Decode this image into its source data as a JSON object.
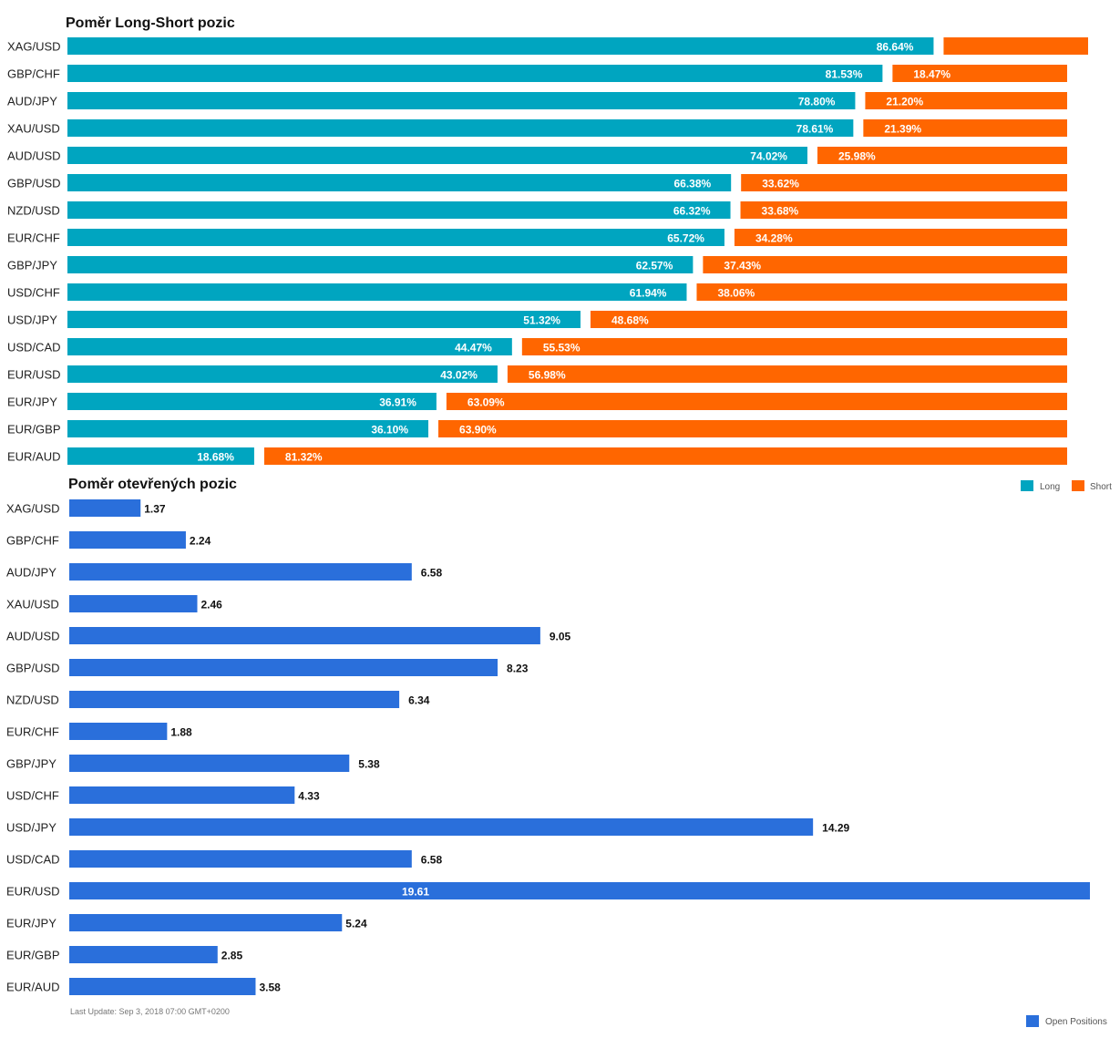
{
  "chart_data": [
    {
      "type": "bar",
      "orientation": "horizontal",
      "stacked": true,
      "title": "Poměr Long-Short pozic",
      "categories": [
        "XAG/USD",
        "GBP/CHF",
        "AUD/JPY",
        "XAU/USD",
        "AUD/USD",
        "GBP/USD",
        "NZD/USD",
        "EUR/CHF",
        "GBP/JPY",
        "USD/CHF",
        "USD/JPY",
        "USD/CAD",
        "EUR/USD",
        "EUR/JPY",
        "EUR/GBP",
        "EUR/AUD"
      ],
      "series": [
        {
          "name": "Long",
          "color": "#00a5c0",
          "values": [
            86.64,
            81.53,
            78.8,
            78.61,
            74.02,
            66.38,
            66.32,
            65.72,
            62.57,
            61.94,
            51.32,
            44.47,
            43.02,
            36.91,
            36.1,
            18.68
          ],
          "labels": [
            "86.64%",
            "81.53%",
            "78.80%",
            "78.61%",
            "74.02%",
            "66.38%",
            "66.32%",
            "65.72%",
            "62.57%",
            "61.94%",
            "51.32%",
            "44.47%",
            "43.02%",
            "36.91%",
            "36.10%",
            "18.68%"
          ]
        },
        {
          "name": "Short",
          "color": "#ff6600",
          "values": [
            13.36,
            18.47,
            21.2,
            21.39,
            25.98,
            33.62,
            33.68,
            34.28,
            37.43,
            38.06,
            48.68,
            55.53,
            56.98,
            63.09,
            63.9,
            81.32
          ],
          "labels": [
            "",
            "18.47%",
            "21.20%",
            "21.39%",
            "25.98%",
            "33.62%",
            "33.68%",
            "34.28%",
            "37.43%",
            "38.06%",
            "48.68%",
            "55.53%",
            "56.98%",
            "63.09%",
            "63.90%",
            "81.32%"
          ]
        }
      ],
      "xlim": [
        0,
        100
      ],
      "grid": false,
      "legend_position": "bottom-right"
    },
    {
      "type": "bar",
      "orientation": "horizontal",
      "title": "Poměr otevřených pozic",
      "categories": [
        "XAG/USD",
        "GBP/CHF",
        "AUD/JPY",
        "XAU/USD",
        "AUD/USD",
        "GBP/USD",
        "NZD/USD",
        "EUR/CHF",
        "GBP/JPY",
        "USD/CHF",
        "USD/JPY",
        "USD/CAD",
        "EUR/USD",
        "EUR/JPY",
        "EUR/GBP",
        "EUR/AUD"
      ],
      "series": [
        {
          "name": "Open Positions",
          "color": "#2a6fdb",
          "values": [
            1.37,
            2.24,
            6.58,
            2.46,
            9.05,
            8.23,
            6.34,
            1.88,
            5.38,
            4.33,
            14.29,
            6.58,
            19.61,
            5.24,
            2.85,
            3.58
          ],
          "labels": [
            "1.37",
            "2.24",
            "6.58",
            "2.46",
            "9.05",
            "8.23",
            "6.34",
            "1.88",
            "5.38",
            "4.33",
            "14.29",
            "6.58",
            "19.61",
            "5.24",
            "2.85",
            "3.58"
          ]
        }
      ],
      "xlim": [
        0,
        19.61
      ],
      "grid": false,
      "legend_position": "bottom-right"
    }
  ],
  "footer": {
    "last_update": "Last Update: Sep 3, 2018 07:00 GMT+0200"
  }
}
